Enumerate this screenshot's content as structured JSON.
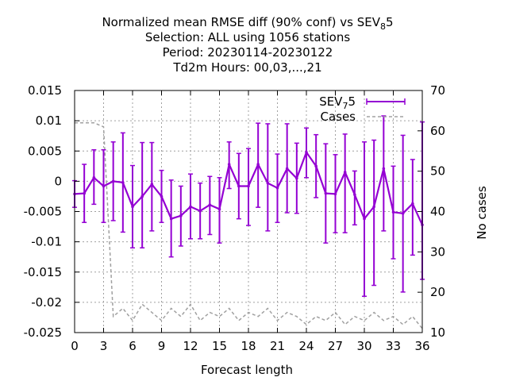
{
  "title_lines": [
    "Normalized mean RMSE diff (90% conf) vs SEV",
    "Selection: ALL using  1056 stations",
    "Period: 20230114-20230122",
    "Td2m   Hours:  00,03,...,21"
  ],
  "title_ref": {
    "sub": "8",
    "rest": "5"
  },
  "legend": [
    {
      "base": "SEV",
      "sub": "7",
      "rest": "5"
    },
    {
      "base": "Cases",
      "sub": "",
      "rest": ""
    }
  ],
  "colors": {
    "series": "#9400d3",
    "cases": "#a0a0a0",
    "grid": "#a0a0a0"
  },
  "chart_data": {
    "type": "line",
    "xlabel": "Forecast length",
    "ylabel": "",
    "y2label": "No cases",
    "xlim": [
      0,
      36
    ],
    "ylim": [
      -0.025,
      0.015
    ],
    "y2lim": [
      10,
      70
    ],
    "grid": true,
    "legend_position": "top-right",
    "xticks": [
      0,
      3,
      6,
      9,
      12,
      15,
      18,
      21,
      24,
      27,
      30,
      33,
      36
    ],
    "yticks": [
      -0.025,
      -0.02,
      -0.015,
      -0.01,
      -0.005,
      0,
      0.005,
      0.01,
      0.015
    ],
    "yticklabels": [
      "-0.025",
      "-0.02",
      "-0.015",
      "-0.01",
      "-0.005",
      "0",
      "0.005",
      "0.01",
      "0.015"
    ],
    "y2ticks": [
      10,
      20,
      30,
      40,
      50,
      60,
      70
    ],
    "series": [
      {
        "name": "SEV75",
        "x": [
          0,
          1,
          2,
          3,
          4,
          5,
          6,
          7,
          8,
          9,
          10,
          11,
          12,
          13,
          14,
          15,
          16,
          17,
          18,
          19,
          20,
          21,
          22,
          23,
          24,
          25,
          26,
          27,
          28,
          29,
          30,
          31,
          32,
          33,
          34,
          35,
          36
        ],
        "values": [
          -0.0021,
          -0.002,
          0.0006,
          -0.0008,
          0.0,
          -0.0002,
          -0.0042,
          -0.0025,
          -0.0005,
          -0.0025,
          -0.0062,
          -0.0057,
          -0.0042,
          -0.0049,
          -0.0039,
          -0.0046,
          0.0028,
          -0.0008,
          -0.0008,
          0.0028,
          -0.0003,
          -0.0011,
          0.0021,
          0.0005,
          0.0048,
          0.0025,
          -0.002,
          -0.0021,
          0.0015,
          -0.0022,
          -0.0062,
          -0.0042,
          0.0021,
          -0.0051,
          -0.0053,
          -0.0037,
          -0.0072
        ],
        "err_low": [
          -0.0043,
          -0.0068,
          -0.0038,
          -0.0068,
          -0.0065,
          -0.0084,
          -0.011,
          -0.011,
          -0.0082,
          -0.0068,
          -0.0125,
          -0.0107,
          -0.0095,
          -0.0095,
          -0.0088,
          -0.0102,
          -0.0012,
          -0.0062,
          -0.0073,
          -0.0043,
          -0.0082,
          -0.0068,
          -0.0052,
          -0.0053,
          0.0006,
          -0.0027,
          -0.0102,
          -0.0085,
          -0.0085,
          -0.0072,
          -0.019,
          -0.0172,
          -0.0082,
          -0.0128,
          -0.0183,
          -0.0122,
          -0.0162
        ],
        "err_high": [
          0.0001,
          0.0028,
          0.0052,
          0.0052,
          0.0065,
          0.008,
          0.0026,
          0.0064,
          0.0064,
          0.0018,
          0.0002,
          -0.0008,
          0.0012,
          -0.0003,
          0.0008,
          0.0006,
          0.0065,
          0.0046,
          0.0054,
          0.0096,
          0.0095,
          0.0045,
          0.0095,
          0.0063,
          0.0088,
          0.0077,
          0.0062,
          0.0044,
          0.0078,
          0.0017,
          0.0065,
          0.0068,
          0.0108,
          0.0025,
          0.0076,
          0.0036,
          0.0098
        ]
      },
      {
        "name": "Cases",
        "axis": "y2",
        "x": [
          0,
          1,
          2,
          3,
          4,
          5,
          6,
          7,
          8,
          9,
          10,
          11,
          12,
          13,
          14,
          15,
          16,
          17,
          18,
          19,
          20,
          21,
          22,
          23,
          24,
          25,
          26,
          27,
          28,
          29,
          30,
          31,
          32,
          33,
          34,
          35,
          36
        ],
        "values": [
          62,
          62,
          62,
          61,
          14,
          16,
          13,
          17,
          15,
          13,
          16,
          14,
          17,
          13,
          15,
          14,
          16,
          13,
          15,
          14,
          16,
          13,
          15,
          14,
          12,
          14,
          13,
          15,
          12,
          14,
          13,
          15,
          13,
          14,
          12,
          14,
          11
        ]
      }
    ]
  }
}
